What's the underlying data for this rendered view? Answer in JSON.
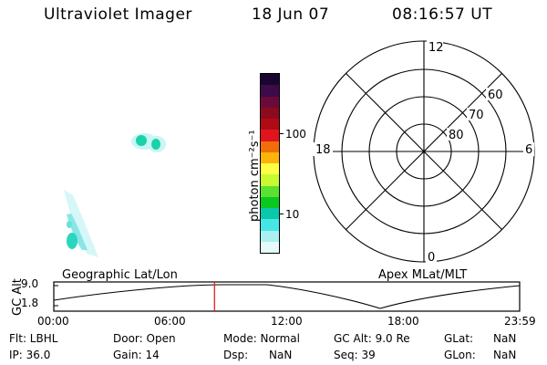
{
  "header": {
    "instrument": "Ultraviolet Imager",
    "date": "18 Jun 07",
    "time": "08:16:57 UT"
  },
  "colorbar": {
    "unit_label": "photon cm⁻²s⁻¹",
    "tick_100": "100",
    "tick_10": "10",
    "colors": [
      "#1a0530",
      "#3d0a4a",
      "#6a0a3a",
      "#8c0a1e",
      "#b00a14",
      "#e0141e",
      "#f06e0a",
      "#fab40a",
      "#ffff46",
      "#c8fa32",
      "#5ae132",
      "#0ac81e",
      "#0ac8aa",
      "#46e6e6",
      "#aaf0f0",
      "#e6fafa"
    ]
  },
  "polar": {
    "mlt_12": "12",
    "mlt_18": "18",
    "mlt_6": "6",
    "mlt_0": "0",
    "lat_60": "60",
    "lat_70": "70",
    "lat_80": "80"
  },
  "map_labels": {
    "left": "Geographic Lat/Lon",
    "right": "Apex MLat/MLT"
  },
  "altitude_plot": {
    "axis_label": "GC Alt",
    "y_top": "9.0",
    "y_bottom": "1.8",
    "x_ticks": [
      "00:00",
      "06:00",
      "12:00",
      "18:00",
      "23:59"
    ],
    "current_time_fraction": 0.345
  },
  "status": {
    "flt": "Flt: LBHL",
    "ip": "IP: 36.0",
    "door": "Door: Open",
    "gain": "Gain: 14",
    "mode": "Mode: Normal",
    "dsp": "Dsp:      NaN",
    "gc_alt": "GC Alt: 9.0 Re",
    "seq": "Seq: 39",
    "glat_label": "GLat:",
    "glat_val": "NaN",
    "glon_label": "GLon:",
    "glon_val": "NaN"
  }
}
